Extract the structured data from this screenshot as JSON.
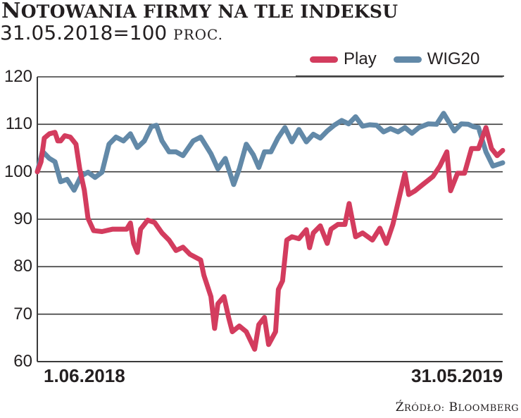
{
  "title": {
    "text": "Notowania firmy na tle indeksu",
    "first": "N",
    "rest": "OTOWANIA FIRMY NA TLE INDEKSU"
  },
  "subtitle": {
    "base": "31.05.2018=100",
    "unit": "proc."
  },
  "legend": [
    {
      "label": "Play",
      "color": "#d33c5e"
    },
    {
      "label": "WIG20",
      "color": "#6289a8"
    }
  ],
  "yaxis": {
    "ticks": [
      "120",
      "110",
      "100",
      "90",
      "80",
      "70",
      "60"
    ]
  },
  "xaxis": {
    "start_label": "1.06.2018",
    "end_label": "31.05.2019"
  },
  "source": {
    "prefix": "Ź",
    "prefix_rest": "ródło:",
    "name_first": "B",
    "name_rest": "loomberg",
    "full": "Źródło: Bloomberg"
  },
  "colors": {
    "play": "#d33c5e",
    "wig20": "#6289a8",
    "grid": "#3a3a3a",
    "text": "#231f20"
  },
  "chart_data": {
    "type": "line",
    "title": "Notowania firmy na tle indeksu",
    "subtitle": "31.05.2018=100 proc.",
    "xlabel": "",
    "ylabel": "",
    "ylim": [
      60,
      120
    ],
    "yticks": [
      60,
      70,
      80,
      90,
      100,
      110,
      120
    ],
    "xticks": [
      "1.06.2018",
      "31.05.2019"
    ],
    "x_range": [
      "2018-05-31",
      "2019-05-31"
    ],
    "grid": "horizontal",
    "legend_position": "top-right",
    "source": "Źródło: Bloomberg",
    "series": [
      {
        "name": "Play",
        "color": "#d33c5e",
        "x_frac": [
          0,
          0.008,
          0.015,
          0.026,
          0.038,
          0.044,
          0.05,
          0.059,
          0.071,
          0.083,
          0.091,
          0.101,
          0.109,
          0.121,
          0.139,
          0.162,
          0.192,
          0.2,
          0.207,
          0.215,
          0.222,
          0.237,
          0.252,
          0.268,
          0.283,
          0.298,
          0.313,
          0.328,
          0.351,
          0.358,
          0.373,
          0.381,
          0.388,
          0.401,
          0.411,
          0.419,
          0.434,
          0.449,
          0.467,
          0.476,
          0.488,
          0.497,
          0.512,
          0.518,
          0.527,
          0.536,
          0.547,
          0.562,
          0.578,
          0.585,
          0.593,
          0.608,
          0.623,
          0.631,
          0.646,
          0.661,
          0.67,
          0.684,
          0.699,
          0.72,
          0.736,
          0.75,
          0.755,
          0.764,
          0.79,
          0.798,
          0.812,
          0.827,
          0.85,
          0.865,
          0.88,
          0.888,
          0.903,
          0.918,
          0.933,
          0.948,
          0.964,
          0.976,
          0.988,
          1.0
        ],
        "values": [
          100,
          102.1,
          107.1,
          108,
          108.3,
          106.5,
          106.5,
          107.6,
          107.3,
          105.8,
          100.6,
          96.1,
          90.2,
          87.6,
          87.4,
          87.9,
          87.9,
          89.2,
          84.9,
          83,
          87.9,
          89.8,
          89.3,
          87.1,
          85.6,
          83.4,
          84.1,
          82.6,
          81.4,
          78.2,
          73.7,
          67,
          72.2,
          73.7,
          69.3,
          66.3,
          67.5,
          66.3,
          62.6,
          67.8,
          69.3,
          63.6,
          66.3,
          75.2,
          77,
          85.6,
          86.3,
          85.9,
          87.8,
          84,
          87.1,
          88.6,
          84.9,
          87.9,
          88.9,
          88.9,
          93.3,
          86.3,
          87.1,
          85.6,
          88.1,
          84.9,
          86.3,
          88.9,
          99.7,
          95.2,
          96,
          97.2,
          99,
          101.2,
          104.2,
          96,
          99.7,
          99.7,
          104.9,
          104.9,
          109.3,
          104.9,
          103.4,
          104.5
        ]
      },
      {
        "name": "WIG20",
        "color": "#6289a8",
        "x_frac": [
          0,
          0.011,
          0.026,
          0.038,
          0.05,
          0.064,
          0.079,
          0.094,
          0.109,
          0.124,
          0.139,
          0.154,
          0.169,
          0.185,
          0.2,
          0.215,
          0.23,
          0.245,
          0.256,
          0.268,
          0.283,
          0.298,
          0.313,
          0.335,
          0.351,
          0.373,
          0.388,
          0.404,
          0.422,
          0.434,
          0.449,
          0.464,
          0.476,
          0.488,
          0.502,
          0.517,
          0.532,
          0.547,
          0.562,
          0.578,
          0.593,
          0.608,
          0.623,
          0.638,
          0.654,
          0.669,
          0.684,
          0.699,
          0.714,
          0.729,
          0.744,
          0.759,
          0.775,
          0.79,
          0.805,
          0.82,
          0.84,
          0.858,
          0.873,
          0.896,
          0.911,
          0.926,
          0.937,
          0.948,
          0.964,
          0.979,
          1.0
        ],
        "values": [
          100,
          104.3,
          102.8,
          102.1,
          97.9,
          98.4,
          96.1,
          99.1,
          99.9,
          98.8,
          99.9,
          105.8,
          107.3,
          106.5,
          108,
          105.1,
          106.5,
          109.5,
          109.8,
          106.5,
          104.2,
          104.2,
          103.4,
          106.5,
          107.3,
          103.8,
          100.6,
          102.8,
          97.3,
          100.6,
          105.8,
          103.6,
          100.9,
          104.2,
          104.2,
          107.1,
          109.3,
          106.3,
          108.9,
          106.3,
          107.9,
          107.1,
          108.6,
          109.8,
          110.8,
          110.1,
          111.6,
          109.6,
          109.9,
          109.8,
          108.4,
          109.1,
          108.4,
          109.3,
          108.1,
          109.3,
          110.1,
          110,
          112.3,
          108.6,
          110.1,
          110,
          109.5,
          109.3,
          104.2,
          101.2,
          101.9
        ]
      }
    ]
  }
}
